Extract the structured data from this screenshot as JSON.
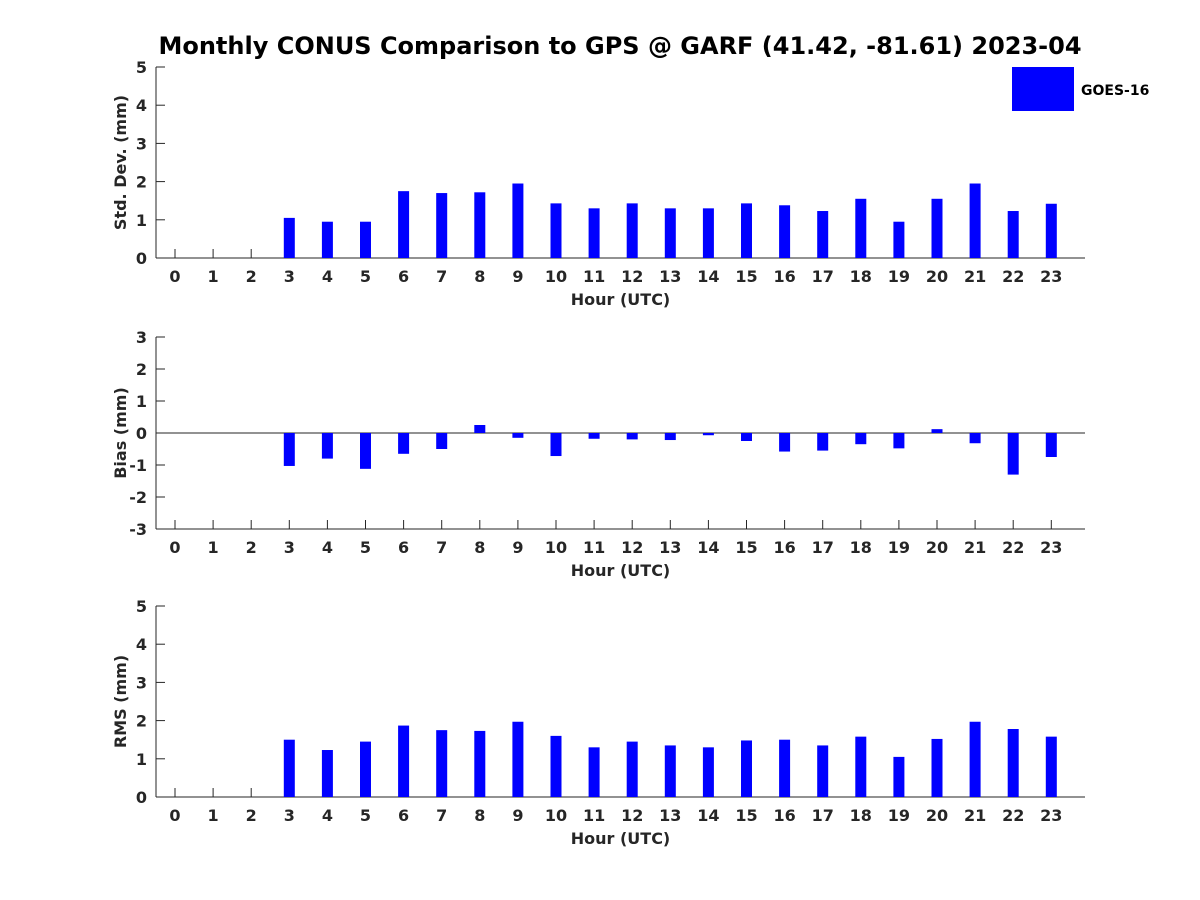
{
  "title": "Monthly CONUS Comparison to GPS @ GARF (41.42, -81.61) 2023-04",
  "legend": {
    "label": "GOES-16",
    "color": "#0000ff"
  },
  "chart_data": [
    {
      "type": "bar",
      "id": "stddev",
      "ylabel": "Std. Dev. (mm)",
      "xlabel": "Hour (UTC)",
      "ylim": [
        0,
        5
      ],
      "yticks": [
        0,
        1,
        2,
        3,
        4,
        5
      ],
      "categories": [
        "0",
        "1",
        "2",
        "3",
        "4",
        "5",
        "6",
        "7",
        "8",
        "9",
        "10",
        "11",
        "12",
        "13",
        "14",
        "15",
        "16",
        "17",
        "18",
        "19",
        "20",
        "21",
        "22",
        "23"
      ],
      "series": [
        {
          "name": "GOES-16",
          "values": [
            null,
            null,
            null,
            1.05,
            0.95,
            0.95,
            1.75,
            1.7,
            1.72,
            1.95,
            1.43,
            1.3,
            1.43,
            1.3,
            1.3,
            1.43,
            1.38,
            1.23,
            1.55,
            0.95,
            1.55,
            1.95,
            1.23,
            1.42
          ]
        }
      ]
    },
    {
      "type": "bar",
      "id": "bias",
      "ylabel": "Bias (mm)",
      "xlabel": "Hour (UTC)",
      "ylim": [
        -3,
        3
      ],
      "yticks": [
        -3,
        -2,
        -1,
        0,
        1,
        2,
        3
      ],
      "categories": [
        "0",
        "1",
        "2",
        "3",
        "4",
        "5",
        "6",
        "7",
        "8",
        "9",
        "10",
        "11",
        "12",
        "13",
        "14",
        "15",
        "16",
        "17",
        "18",
        "19",
        "20",
        "21",
        "22",
        "23"
      ],
      "series": [
        {
          "name": "GOES-16",
          "values": [
            null,
            null,
            null,
            -1.03,
            -0.8,
            -1.12,
            -0.65,
            -0.5,
            0.25,
            -0.15,
            -0.72,
            -0.18,
            -0.2,
            -0.22,
            -0.07,
            -0.25,
            -0.58,
            -0.55,
            -0.35,
            -0.48,
            0.12,
            -0.32,
            -1.3,
            -0.75
          ]
        }
      ]
    },
    {
      "type": "bar",
      "id": "rms",
      "ylabel": "RMS (mm)",
      "xlabel": "Hour (UTC)",
      "ylim": [
        0,
        5
      ],
      "yticks": [
        0,
        1,
        2,
        3,
        4,
        5
      ],
      "categories": [
        "0",
        "1",
        "2",
        "3",
        "4",
        "5",
        "6",
        "7",
        "8",
        "9",
        "10",
        "11",
        "12",
        "13",
        "14",
        "15",
        "16",
        "17",
        "18",
        "19",
        "20",
        "21",
        "22",
        "23"
      ],
      "series": [
        {
          "name": "GOES-16",
          "values": [
            null,
            null,
            null,
            1.5,
            1.23,
            1.45,
            1.87,
            1.75,
            1.73,
            1.97,
            1.6,
            1.3,
            1.45,
            1.35,
            1.3,
            1.48,
            1.5,
            1.35,
            1.58,
            1.05,
            1.52,
            1.97,
            1.78,
            1.58
          ]
        }
      ]
    }
  ]
}
